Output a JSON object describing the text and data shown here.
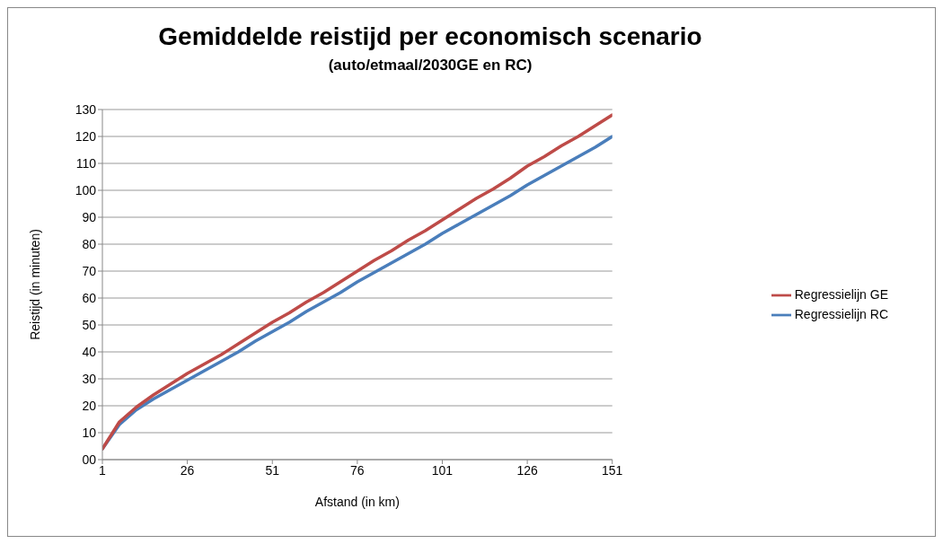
{
  "chart_data": {
    "type": "line",
    "title": "Gemiddelde reistijd per economisch scenario",
    "subtitle": "(auto/etmaal/2030GE en RC)",
    "xlabel": "Afstand (in km)",
    "ylabel": "Reistijd (in minuten)",
    "x": [
      1,
      6,
      11,
      16,
      21,
      26,
      31,
      36,
      41,
      46,
      51,
      56,
      61,
      66,
      71,
      76,
      81,
      86,
      91,
      96,
      101,
      106,
      111,
      116,
      121,
      126,
      131,
      136,
      141,
      146,
      151
    ],
    "series": [
      {
        "name": "Regressielijn RC",
        "color": "#4a7ebb",
        "values": [
          4,
          13,
          18.5,
          22.5,
          26,
          29.5,
          33,
          36.5,
          40,
          44,
          47.5,
          51,
          55,
          58.5,
          62,
          66,
          69.5,
          73,
          76.5,
          80,
          84,
          87.5,
          91,
          94.5,
          98,
          102,
          105.5,
          109,
          112.5,
          116,
          120
        ]
      },
      {
        "name": "Regressielijn GE",
        "color": "#be4b48",
        "values": [
          4,
          14,
          19.5,
          24,
          28,
          32,
          35.5,
          39,
          43,
          47,
          51,
          54.5,
          58.5,
          62,
          66,
          70,
          74,
          77.5,
          81.5,
          85,
          89,
          93,
          97,
          100.5,
          104.5,
          109,
          112.5,
          116.5,
          120,
          124,
          128
        ]
      }
    ],
    "xlim": [
      1,
      151
    ],
    "xticks": [
      1,
      26,
      51,
      76,
      101,
      126,
      151
    ],
    "ylim": [
      0,
      130
    ],
    "yticks": [
      {
        "value": 0,
        "label": "00"
      },
      10,
      20,
      30,
      40,
      50,
      60,
      70,
      80,
      90,
      100,
      110,
      120,
      130
    ],
    "grid": "y",
    "legend": "right",
    "marker": "none",
    "line_style": "solid"
  }
}
